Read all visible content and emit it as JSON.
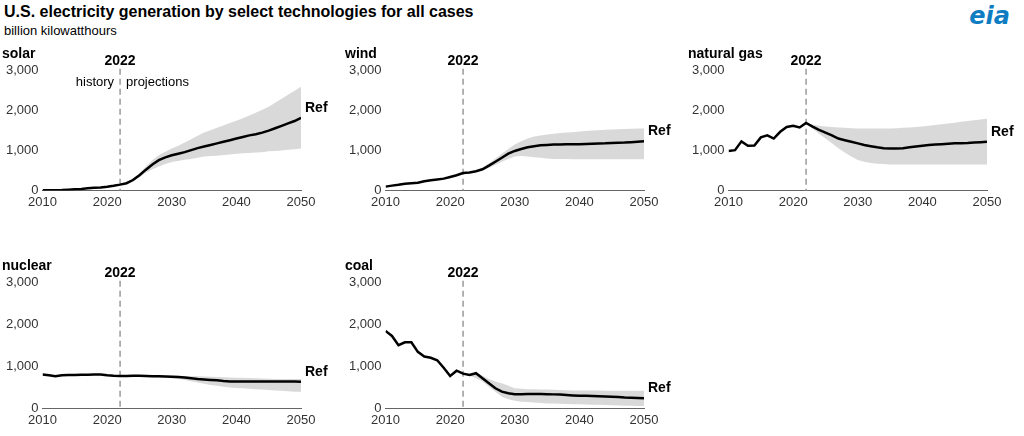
{
  "title": "U.S. electricity generation by select technologies for all cases",
  "subtitle": "billion kilowatthours",
  "logo": "eia",
  "chart_data": [
    {
      "type": "line",
      "title": "solar",
      "x": [
        2010,
        2011,
        2012,
        2013,
        2014,
        2015,
        2016,
        2017,
        2018,
        2019,
        2020,
        2021,
        2022,
        2023,
        2024,
        2025,
        2026,
        2027,
        2028,
        2029,
        2030,
        2031,
        2032,
        2033,
        2034,
        2035,
        2036,
        2037,
        2038,
        2039,
        2040,
        2041,
        2042,
        2043,
        2044,
        2045,
        2046,
        2047,
        2048,
        2049,
        2050
      ],
      "series": [
        {
          "name": "Ref",
          "color": "#000000",
          "values": [
            1,
            2,
            4,
            9,
            18,
            26,
            36,
            53,
            64,
            72,
            90,
            115,
            145,
            180,
            260,
            380,
            520,
            650,
            760,
            830,
            880,
            920,
            960,
            1010,
            1060,
            1100,
            1140,
            1180,
            1220,
            1260,
            1300,
            1340,
            1380,
            1410,
            1450,
            1500,
            1560,
            1620,
            1680,
            1740,
            1820
          ]
        }
      ],
      "range": {
        "color": "#d9d9d9",
        "low": [
          null,
          null,
          null,
          null,
          null,
          null,
          null,
          null,
          null,
          null,
          null,
          null,
          145,
          170,
          230,
          330,
          440,
          530,
          600,
          660,
          710,
          740,
          770,
          790,
          820,
          850,
          860,
          870,
          890,
          900,
          920,
          930,
          940,
          950,
          960,
          980,
          990,
          1000,
          1020,
          1030,
          1050
        ],
        "high": [
          null,
          null,
          null,
          null,
          null,
          null,
          null,
          null,
          null,
          null,
          null,
          null,
          145,
          200,
          300,
          430,
          600,
          760,
          880,
          970,
          1050,
          1120,
          1200,
          1280,
          1370,
          1450,
          1510,
          1570,
          1630,
          1690,
          1750,
          1810,
          1880,
          1950,
          2020,
          2100,
          2200,
          2300,
          2400,
          2500,
          2600
        ]
      },
      "vline": {
        "x": 2022,
        "label": "2022"
      },
      "annotations": [
        "history",
        "projections"
      ],
      "xlim": [
        2010,
        2050
      ],
      "xticks": [
        2010,
        2020,
        2030,
        2040,
        2050
      ],
      "ylim": [
        0,
        3000
      ],
      "yticks": [
        0,
        {
          "value": 1000,
          "label": "1,000"
        },
        {
          "value": 2000,
          "label": "2,000"
        },
        {
          "value": 3000,
          "label": "3,000"
        }
      ],
      "grid": false
    },
    {
      "type": "line",
      "title": "wind",
      "x": [
        2010,
        2011,
        2012,
        2013,
        2014,
        2015,
        2016,
        2017,
        2018,
        2019,
        2020,
        2021,
        2022,
        2023,
        2024,
        2025,
        2026,
        2027,
        2028,
        2029,
        2030,
        2031,
        2032,
        2033,
        2034,
        2035,
        2036,
        2037,
        2038,
        2039,
        2040,
        2041,
        2042,
        2043,
        2044,
        2045,
        2046,
        2047,
        2048,
        2049,
        2050
      ],
      "series": [
        {
          "name": "Ref",
          "color": "#000000",
          "values": [
            95,
            120,
            140,
            168,
            182,
            191,
            227,
            254,
            273,
            295,
            338,
            380,
            435,
            450,
            480,
            530,
            620,
            720,
            820,
            920,
            990,
            1040,
            1080,
            1110,
            1130,
            1140,
            1150,
            1150,
            1155,
            1160,
            1160,
            1165,
            1170,
            1175,
            1180,
            1190,
            1195,
            1200,
            1210,
            1220,
            1230
          ]
        }
      ],
      "range": {
        "color": "#d9d9d9",
        "low": [
          null,
          null,
          null,
          null,
          null,
          null,
          null,
          null,
          null,
          null,
          null,
          null,
          435,
          440,
          460,
          500,
          560,
          640,
          720,
          790,
          850,
          860,
          850,
          830,
          820,
          800,
          790,
          790,
          785,
          780,
          780,
          780,
          780,
          780,
          780,
          780,
          780,
          780,
          780,
          780,
          780
        ],
        "high": [
          null,
          null,
          null,
          null,
          null,
          null,
          null,
          null,
          null,
          null,
          null,
          null,
          435,
          460,
          500,
          570,
          680,
          800,
          920,
          1040,
          1150,
          1230,
          1300,
          1350,
          1380,
          1400,
          1420,
          1440,
          1450,
          1460,
          1480,
          1490,
          1500,
          1510,
          1520,
          1530,
          1535,
          1540,
          1545,
          1550,
          1550
        ]
      },
      "vline": {
        "x": 2022,
        "label": "2022"
      },
      "xlim": [
        2010,
        2050
      ],
      "xticks": [
        2010,
        2020,
        2030,
        2040,
        2050
      ],
      "ylim": [
        0,
        3000
      ],
      "yticks": [
        0,
        {
          "value": 1000,
          "label": "1,000"
        },
        {
          "value": 2000,
          "label": "2,000"
        },
        {
          "value": 3000,
          "label": "3,000"
        }
      ],
      "grid": false
    },
    {
      "type": "line",
      "title": "natural gas",
      "x": [
        2010,
        2011,
        2012,
        2013,
        2014,
        2015,
        2016,
        2017,
        2018,
        2019,
        2020,
        2021,
        2022,
        2023,
        2024,
        2025,
        2026,
        2027,
        2028,
        2029,
        2030,
        2031,
        2032,
        2033,
        2034,
        2035,
        2036,
        2037,
        2038,
        2039,
        2040,
        2041,
        2042,
        2043,
        2044,
        2045,
        2046,
        2047,
        2048,
        2049,
        2050
      ],
      "series": [
        {
          "name": "Ref",
          "color": "#000000",
          "values": [
            990,
            1010,
            1230,
            1120,
            1125,
            1330,
            1380,
            1300,
            1470,
            1590,
            1620,
            1580,
            1690,
            1600,
            1520,
            1450,
            1380,
            1300,
            1260,
            1220,
            1180,
            1140,
            1110,
            1080,
            1060,
            1050,
            1050,
            1060,
            1080,
            1100,
            1120,
            1140,
            1150,
            1160,
            1170,
            1180,
            1185,
            1190,
            1200,
            1210,
            1220
          ]
        }
      ],
      "range": {
        "color": "#d9d9d9",
        "low": [
          null,
          null,
          null,
          null,
          null,
          null,
          null,
          null,
          null,
          null,
          null,
          null,
          1690,
          1550,
          1420,
          1300,
          1180,
          1060,
          950,
          850,
          760,
          720,
          690,
          670,
          660,
          650,
          650,
          650,
          650,
          650,
          650,
          650,
          650,
          650,
          650,
          650,
          650,
          650,
          650,
          650,
          650
        ],
        "high": [
          null,
          null,
          null,
          null,
          null,
          null,
          null,
          null,
          null,
          null,
          null,
          null,
          1690,
          1650,
          1620,
          1600,
          1590,
          1580,
          1570,
          1560,
          1550,
          1550,
          1550,
          1550,
          1550,
          1550,
          1560,
          1570,
          1580,
          1590,
          1600,
          1620,
          1640,
          1660,
          1680,
          1700,
          1720,
          1740,
          1760,
          1780,
          1800
        ]
      },
      "vline": {
        "x": 2022,
        "label": "2022"
      },
      "xlim": [
        2010,
        2050
      ],
      "xticks": [
        2010,
        2020,
        2030,
        2040,
        2050
      ],
      "ylim": [
        0,
        3000
      ],
      "yticks": [
        0,
        {
          "value": 1000,
          "label": "1,000"
        },
        {
          "value": 2000,
          "label": "2,000"
        },
        {
          "value": 3000,
          "label": "3,000"
        }
      ],
      "grid": false
    },
    {
      "type": "line",
      "title": "nuclear",
      "x": [
        2010,
        2011,
        2012,
        2013,
        2014,
        2015,
        2016,
        2017,
        2018,
        2019,
        2020,
        2021,
        2022,
        2023,
        2024,
        2025,
        2026,
        2027,
        2028,
        2029,
        2030,
        2031,
        2032,
        2033,
        2034,
        2035,
        2036,
        2037,
        2038,
        2039,
        2040,
        2041,
        2042,
        2043,
        2044,
        2045,
        2046,
        2047,
        2048,
        2049,
        2050
      ],
      "series": [
        {
          "name": "Ref",
          "color": "#000000",
          "values": [
            807,
            790,
            769,
            789,
            797,
            797,
            805,
            805,
            807,
            809,
            790,
            778,
            772,
            775,
            780,
            778,
            775,
            770,
            765,
            760,
            755,
            750,
            740,
            720,
            700,
            690,
            680,
            670,
            655,
            645,
            640,
            640,
            640,
            640,
            640,
            640,
            640,
            640,
            640,
            640,
            635
          ]
        }
      ],
      "range": {
        "color": "#d9d9d9",
        "low": [
          null,
          null,
          null,
          null,
          null,
          null,
          null,
          null,
          null,
          null,
          null,
          null,
          772,
          770,
          765,
          760,
          750,
          745,
          740,
          730,
          720,
          700,
          680,
          650,
          620,
          590,
          560,
          540,
          520,
          500,
          490,
          480,
          470,
          460,
          450,
          440,
          430,
          420,
          410,
          400,
          400
        ],
        "high": [
          null,
          null,
          null,
          null,
          null,
          null,
          null,
          null,
          null,
          null,
          null,
          null,
          772,
          780,
          790,
          795,
          795,
          795,
          790,
          790,
          785,
          780,
          775,
          770,
          765,
          760,
          755,
          750,
          745,
          740,
          735,
          730,
          725,
          720,
          715,
          710,
          705,
          700,
          700,
          700,
          700
        ]
      },
      "vline": {
        "x": 2022,
        "label": "2022"
      },
      "xlim": [
        2010,
        2050
      ],
      "xticks": [
        2010,
        2020,
        2030,
        2040,
        2050
      ],
      "ylim": [
        0,
        3000
      ],
      "yticks": [
        0,
        {
          "value": 1000,
          "label": "1,000"
        },
        {
          "value": 2000,
          "label": "2,000"
        },
        {
          "value": 3000,
          "label": "3,000"
        }
      ],
      "grid": false
    },
    {
      "type": "line",
      "title": "coal",
      "x": [
        2010,
        2011,
        2012,
        2013,
        2014,
        2015,
        2016,
        2017,
        2018,
        2019,
        2020,
        2021,
        2022,
        2023,
        2024,
        2025,
        2026,
        2027,
        2028,
        2029,
        2030,
        2031,
        2032,
        2033,
        2034,
        2035,
        2036,
        2037,
        2038,
        2039,
        2040,
        2041,
        2042,
        2043,
        2044,
        2045,
        2046,
        2047,
        2048,
        2049,
        2050
      ],
      "series": [
        {
          "name": "Ref",
          "color": "#000000",
          "values": [
            1850,
            1730,
            1510,
            1580,
            1580,
            1350,
            1240,
            1210,
            1150,
            970,
            775,
            900,
            830,
            800,
            840,
            720,
            600,
            480,
            400,
            360,
            340,
            340,
            345,
            345,
            345,
            340,
            335,
            330,
            320,
            310,
            300,
            300,
            295,
            290,
            285,
            280,
            270,
            260,
            255,
            250,
            240
          ]
        }
      ],
      "range": {
        "color": "#d9d9d9",
        "low": [
          null,
          null,
          null,
          null,
          null,
          null,
          null,
          null,
          null,
          null,
          null,
          null,
          830,
          780,
          720,
          650,
          520,
          400,
          280,
          220,
          180,
          160,
          150,
          140,
          130,
          120,
          115,
          110,
          105,
          100,
          100,
          95,
          90,
          85,
          80,
          75,
          70,
          65,
          65,
          60,
          60
        ],
        "high": [
          null,
          null,
          null,
          null,
          null,
          null,
          null,
          null,
          null,
          null,
          null,
          null,
          830,
          820,
          850,
          780,
          700,
          640,
          600,
          540,
          480,
          470,
          460,
          455,
          450,
          450,
          445,
          440,
          435,
          430,
          430,
          430,
          425,
          425,
          420,
          420,
          420,
          420,
          420,
          420,
          420
        ]
      },
      "vline": {
        "x": 2022,
        "label": "2022"
      },
      "xlim": [
        2010,
        2050
      ],
      "xticks": [
        2010,
        2020,
        2030,
        2040,
        2050
      ],
      "ylim": [
        0,
        3000
      ],
      "yticks": [
        0,
        {
          "value": 1000,
          "label": "1,000"
        },
        {
          "value": 2000,
          "label": "2,000"
        },
        {
          "value": 3000,
          "label": "3,000"
        }
      ],
      "grid": false
    }
  ]
}
